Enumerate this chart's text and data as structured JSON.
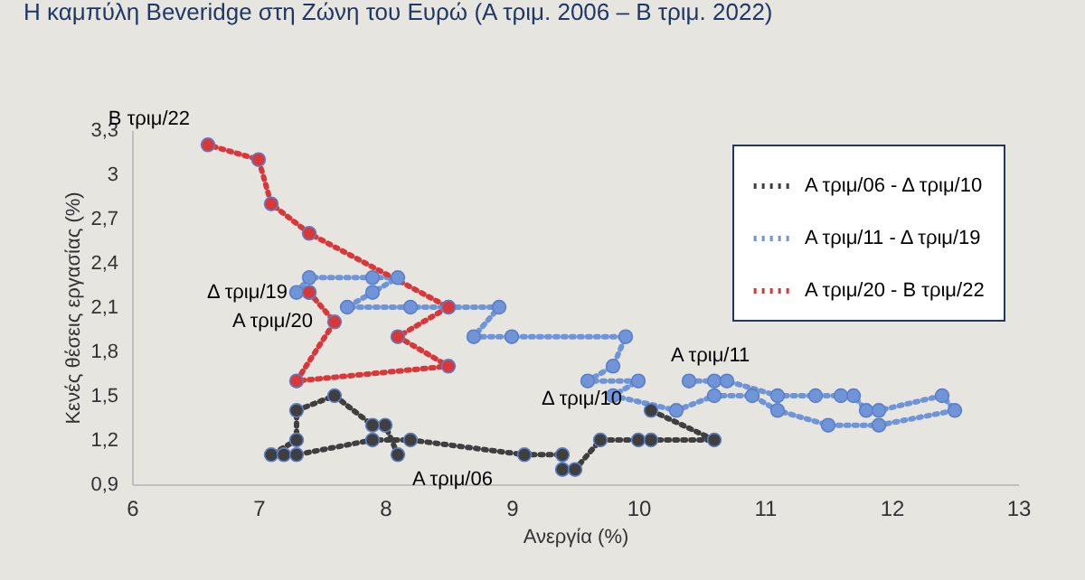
{
  "chart_data": {
    "type": "line",
    "title": "Η καμπύλη Beveridge στη Ζώνη του Ευρώ (Α τριμ. 2006 – Β τριμ. 2022)",
    "xlabel": "Ανεργία (%)",
    "ylabel": "Κενές θέσεις εργασίας (%)",
    "series": [
      {
        "name": "Α τριμ/06 - Δ τριμ/10",
        "color": "#3f3f3f",
        "x": [
          8.1,
          8.0,
          7.9,
          7.6,
          7.3,
          7.3,
          7.1,
          7.2,
          7.3,
          7.9,
          8.2,
          9.1,
          9.4,
          9.4,
          9.5,
          9.7,
          10.0,
          10.1,
          10.6,
          10.1
        ],
        "values": [
          1.1,
          1.3,
          1.3,
          1.5,
          1.4,
          1.2,
          1.1,
          1.1,
          1.1,
          1.2,
          1.2,
          1.1,
          1.1,
          1.0,
          1.0,
          1.2,
          1.2,
          1.2,
          1.2,
          1.4
        ]
      },
      {
        "name": "Α τριμ/11 - Δ τριμ/19",
        "color": "#6f95d8",
        "x": [
          10.4,
          10.6,
          10.7,
          11.1,
          11.4,
          11.6,
          11.7,
          11.8,
          11.9,
          12.4,
          12.5,
          11.9,
          11.5,
          11.1,
          10.9,
          10.6,
          10.3,
          9.8,
          10.0,
          9.6,
          9.8,
          9.9,
          9.0,
          8.7,
          8.9,
          8.5,
          8.2,
          7.7,
          7.9,
          8.1,
          7.9,
          7.4,
          7.3,
          7.4
        ],
        "values": [
          1.6,
          1.6,
          1.6,
          1.5,
          1.5,
          1.5,
          1.5,
          1.4,
          1.4,
          1.5,
          1.4,
          1.3,
          1.3,
          1.4,
          1.5,
          1.5,
          1.4,
          1.5,
          1.6,
          1.6,
          1.7,
          1.9,
          1.9,
          1.9,
          2.1,
          2.1,
          2.1,
          2.1,
          2.2,
          2.3,
          2.3,
          2.3,
          2.2,
          2.2
        ]
      },
      {
        "name": "Α τριμ/20 - Β τριμ/22",
        "color": "#d9383a",
        "x": [
          7.4,
          7.6,
          7.3,
          8.5,
          8.1,
          8.5,
          7.4,
          7.1,
          7.0,
          6.6
        ],
        "values": [
          2.2,
          2.0,
          1.6,
          1.7,
          1.9,
          2.1,
          2.6,
          2.8,
          3.1,
          3.2
        ]
      }
    ],
    "annotations": [
      {
        "text": "Α τριμ/06",
        "x": 8.1,
        "y": 1.1
      },
      {
        "text": "Δ τριμ/10",
        "x": 10.1,
        "y": 1.4
      },
      {
        "text": "Α τριμ/11",
        "x": 10.4,
        "y": 1.6
      },
      {
        "text": "Δ τριμ/19",
        "x": 7.4,
        "y": 2.2
      },
      {
        "text": "Α τριμ/20",
        "x": 7.6,
        "y": 2.0
      },
      {
        "text": "Β τριμ/22",
        "x": 6.6,
        "y": 3.2
      }
    ],
    "xlim": [
      6,
      13
    ],
    "xticks": [
      6,
      7,
      8,
      9,
      10,
      11,
      12,
      13
    ],
    "ylim": [
      0.9,
      3.3
    ],
    "yticks": [
      {
        "value": 0.9,
        "label": "0,9"
      },
      {
        "value": 1.2,
        "label": "1,2"
      },
      {
        "value": 1.5,
        "label": "1,5"
      },
      {
        "value": 1.8,
        "label": "1,8"
      },
      {
        "value": 2.1,
        "label": "2,1"
      },
      {
        "value": 2.4,
        "label": "2,4"
      },
      {
        "value": 2.7,
        "label": "2,7"
      },
      {
        "value": 3.0,
        "label": "3"
      },
      {
        "value": 3.3,
        "label": "3,3"
      }
    ],
    "legend": "top right",
    "marker": "circle",
    "line_style": "dotted"
  }
}
